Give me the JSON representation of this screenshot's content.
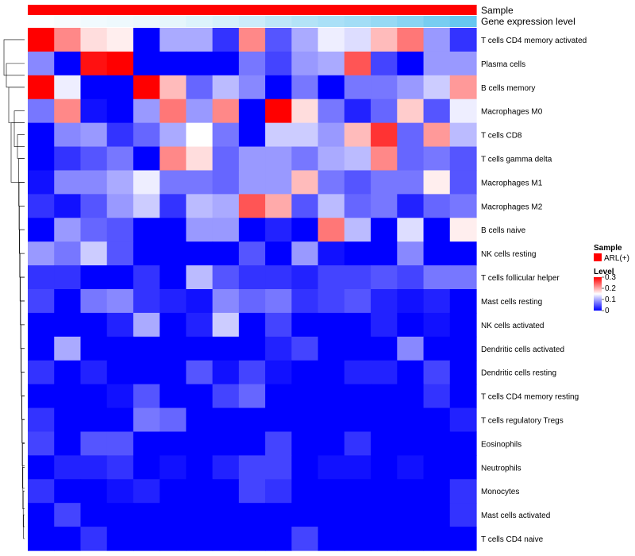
{
  "chart_data": {
    "type": "heatmap",
    "title": "",
    "annotations": [
      {
        "name": "Sample"
      },
      {
        "name": "Gene expression level"
      }
    ],
    "columns_count": 17,
    "gene_expression_level": [
      0.02,
      0.05,
      0.08,
      0.1,
      0.12,
      0.15,
      0.2,
      0.25,
      0.3,
      0.38,
      0.45,
      0.5,
      0.55,
      0.62,
      0.7,
      0.8,
      0.9
    ],
    "rows": [
      "T cells CD4 memory activated",
      "Plasma cells",
      "B cells memory",
      "Macrophages M0",
      "T cells CD8",
      "T cells gamma delta",
      "Macrophages M1",
      "Macrophages M2",
      "B cells naive",
      "NK cells resting",
      "T cells follicular helper",
      "Mast cells resting",
      "NK cells activated",
      "Dendritic cells activated",
      "Dendritic cells resting",
      "T cells CD4 memory resting",
      "T cells regulatory  Tregs",
      "Eosinophils",
      "Neutrophils",
      "Monocytes",
      "Mast cells activated",
      "T cells CD4 naive"
    ],
    "values": [
      [
        0.3,
        0.22,
        0.17,
        0.16,
        0.0,
        0.1,
        0.1,
        0.03,
        0.22,
        0.05,
        0.1,
        0.14,
        0.13,
        0.19,
        0.23,
        0.09,
        0.03
      ],
      [
        0.08,
        0.0,
        0.29,
        0.3,
        0.0,
        0.0,
        0.0,
        0.0,
        0.07,
        0.04,
        0.09,
        0.1,
        0.25,
        0.04,
        0.0,
        0.09,
        0.09
      ],
      [
        0.3,
        0.14,
        0.0,
        0.0,
        0.3,
        0.19,
        0.06,
        0.11,
        0.08,
        0.0,
        0.07,
        0.0,
        0.07,
        0.07,
        0.09,
        0.12,
        0.21
      ],
      [
        0.07,
        0.22,
        0.01,
        0.0,
        0.09,
        0.23,
        0.09,
        0.22,
        0.0,
        0.3,
        0.17,
        0.07,
        0.02,
        0.06,
        0.18,
        0.05,
        0.14
      ],
      [
        0.0,
        0.08,
        0.09,
        0.03,
        0.06,
        0.1,
        0.15,
        0.07,
        0.0,
        0.12,
        0.12,
        0.09,
        0.19,
        0.27,
        0.06,
        0.21,
        0.11
      ],
      [
        0.0,
        0.03,
        0.05,
        0.07,
        0.0,
        0.22,
        0.17,
        0.06,
        0.09,
        0.09,
        0.07,
        0.1,
        0.11,
        0.22,
        0.06,
        0.07,
        0.05
      ],
      [
        0.01,
        0.08,
        0.08,
        0.1,
        0.14,
        0.07,
        0.07,
        0.06,
        0.09,
        0.09,
        0.19,
        0.07,
        0.05,
        0.07,
        0.07,
        0.16,
        0.05
      ],
      [
        0.03,
        0.01,
        0.05,
        0.09,
        0.12,
        0.03,
        0.11,
        0.1,
        0.25,
        0.2,
        0.05,
        0.11,
        0.06,
        0.07,
        0.02,
        0.06,
        0.07
      ],
      [
        0.0,
        0.09,
        0.06,
        0.05,
        0.0,
        0.0,
        0.09,
        0.09,
        0.0,
        0.02,
        0.0,
        0.23,
        0.11,
        0.0,
        0.13,
        0.0,
        0.16
      ],
      [
        0.09,
        0.07,
        0.12,
        0.05,
        0.0,
        0.0,
        0.0,
        0.0,
        0.05,
        0.0,
        0.09,
        0.01,
        0.0,
        0.0,
        0.08,
        0.0,
        0.0
      ],
      [
        0.03,
        0.03,
        0.0,
        0.0,
        0.03,
        0.0,
        0.11,
        0.05,
        0.03,
        0.03,
        0.02,
        0.04,
        0.04,
        0.05,
        0.04,
        0.07,
        0.07
      ],
      [
        0.04,
        0.0,
        0.07,
        0.08,
        0.03,
        0.02,
        0.01,
        0.08,
        0.06,
        0.07,
        0.03,
        0.04,
        0.05,
        0.02,
        0.01,
        0.02,
        0.0
      ],
      [
        0.0,
        0.0,
        0.0,
        0.02,
        0.1,
        0.0,
        0.02,
        0.12,
        0.0,
        0.04,
        0.0,
        0.0,
        0.0,
        0.02,
        0.0,
        0.01,
        0.0
      ],
      [
        0.0,
        0.1,
        0.0,
        0.0,
        0.0,
        0.0,
        0.0,
        0.0,
        0.0,
        0.02,
        0.04,
        0.0,
        0.0,
        0.0,
        0.08,
        0.0,
        0.0
      ],
      [
        0.03,
        0.0,
        0.02,
        0.0,
        0.0,
        0.0,
        0.05,
        0.01,
        0.04,
        0.01,
        0.0,
        0.0,
        0.02,
        0.02,
        0.0,
        0.04,
        0.0
      ],
      [
        0.0,
        0.0,
        0.0,
        0.01,
        0.05,
        0.0,
        0.0,
        0.04,
        0.06,
        0.0,
        0.0,
        0.0,
        0.0,
        0.0,
        0.0,
        0.03,
        0.0
      ],
      [
        0.03,
        0.0,
        0.0,
        0.0,
        0.07,
        0.06,
        0.0,
        0.0,
        0.0,
        0.0,
        0.0,
        0.0,
        0.0,
        0.0,
        0.0,
        0.0,
        0.02
      ],
      [
        0.04,
        0.0,
        0.05,
        0.05,
        0.0,
        0.0,
        0.0,
        0.0,
        0.0,
        0.04,
        0.0,
        0.0,
        0.03,
        0.0,
        0.0,
        0.0,
        0.0
      ],
      [
        0.0,
        0.02,
        0.02,
        0.03,
        0.0,
        0.01,
        0.0,
        0.02,
        0.04,
        0.04,
        0.0,
        0.01,
        0.01,
        0.0,
        0.01,
        0.0,
        0.0
      ],
      [
        0.03,
        0.0,
        0.0,
        0.01,
        0.02,
        0.0,
        0.0,
        0.0,
        0.04,
        0.03,
        0.0,
        0.0,
        0.0,
        0.0,
        0.0,
        0.0,
        0.03
      ],
      [
        0.0,
        0.04,
        0.0,
        0.0,
        0.0,
        0.0,
        0.0,
        0.0,
        0.0,
        0.0,
        0.0,
        0.0,
        0.0,
        0.0,
        0.0,
        0.0,
        0.03
      ],
      [
        0.0,
        0.0,
        0.03,
        0.0,
        0.0,
        0.0,
        0.0,
        0.0,
        0.0,
        0.0,
        0.04,
        0.0,
        0.0,
        0.0,
        0.0,
        0.0,
        0.0
      ]
    ],
    "color_scale": {
      "min": 0,
      "max": 0.3,
      "low": "#0000ff",
      "mid": "#ffffff",
      "high": "#ff0000",
      "mid_value": 0.15
    },
    "legend": {
      "sample_title": "Sample",
      "sample_entry": "ARL(+)",
      "sample_color": "#ff0000",
      "level_title": "Level",
      "level_ticks": [
        "0.3",
        "0.2",
        "0.1",
        "0"
      ],
      "level_tick_values": [
        0.3,
        0.2,
        0.1,
        0
      ]
    },
    "annotation_colors": {
      "sample": "#ff0000",
      "gel_low": "#ffffff",
      "gel_high": "#55c1ee"
    }
  }
}
